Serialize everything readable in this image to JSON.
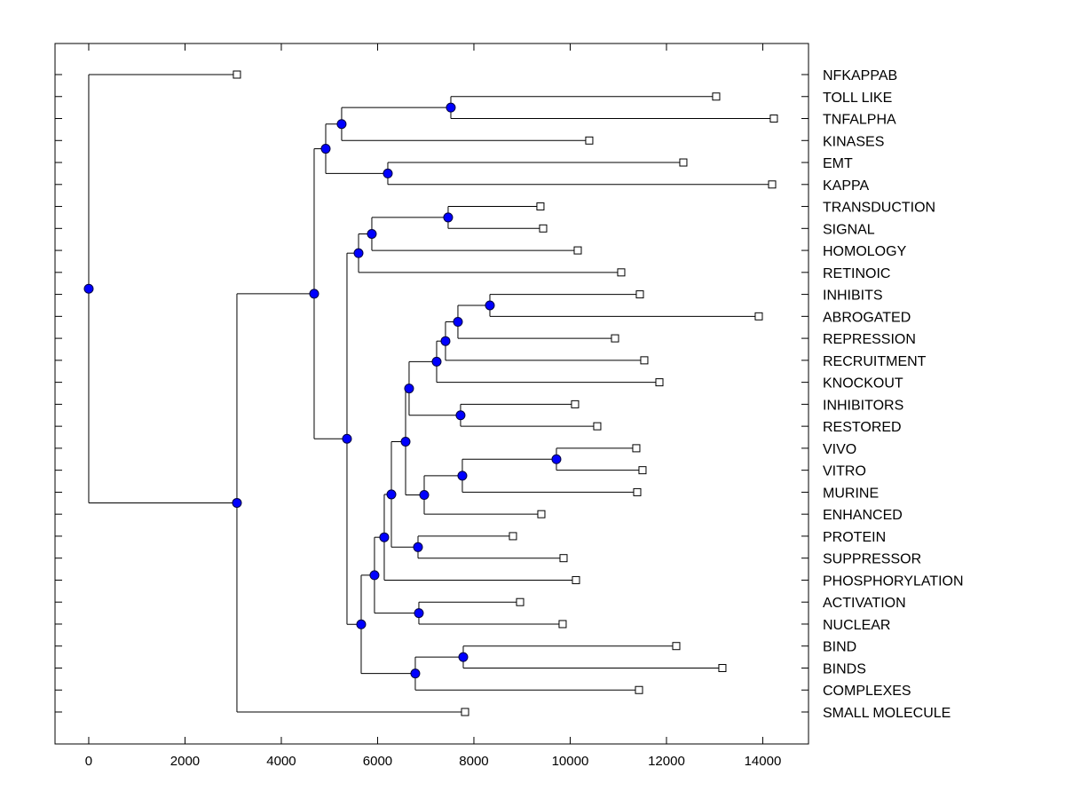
{
  "chart_data": {
    "type": "dendrogram",
    "title": "",
    "xlabel": "",
    "ylabel": "",
    "xlim": [
      -700,
      14950
    ],
    "x_ticks": [
      0,
      2000,
      4000,
      6000,
      8000,
      10000,
      12000,
      14000
    ],
    "x_tick_labels": [
      "0",
      "2000",
      "4000",
      "6000",
      "8000",
      "10000",
      "12000",
      "14000"
    ],
    "grid": false,
    "leaf_marker": "open-square",
    "node_marker": "filled-circle",
    "node_color": "#0000FF",
    "line_color": "#000000",
    "leaves": [
      {
        "label": "NFKAPPAB",
        "x": 3078
      },
      {
        "label": "TOLL LIKE",
        "x": 13032
      },
      {
        "label": "TNFALPHA",
        "x": 14230
      },
      {
        "label": "KINASES",
        "x": 10396
      },
      {
        "label": "EMT",
        "x": 12350
      },
      {
        "label": "KAPPA",
        "x": 14194
      },
      {
        "label": "TRANSDUCTION",
        "x": 9382
      },
      {
        "label": "SIGNAL",
        "x": 9438
      },
      {
        "label": "HOMOLOGY",
        "x": 10157
      },
      {
        "label": "RETINOIC",
        "x": 11060
      },
      {
        "label": "INHIBITS",
        "x": 11447
      },
      {
        "label": "ABROGATED",
        "x": 13917
      },
      {
        "label": "REPRESSION",
        "x": 10931
      },
      {
        "label": "RECRUITMENT",
        "x": 11539
      },
      {
        "label": "KNOCKOUT",
        "x": 11853
      },
      {
        "label": "INHIBITORS",
        "x": 10101
      },
      {
        "label": "RESTORED",
        "x": 10562
      },
      {
        "label": "VIVO",
        "x": 11373
      },
      {
        "label": "VITRO",
        "x": 11502
      },
      {
        "label": "MURINE",
        "x": 11392
      },
      {
        "label": "ENHANCED",
        "x": 9401
      },
      {
        "label": "PROTEIN",
        "x": 8811
      },
      {
        "label": "SUPPRESSOR",
        "x": 9862
      },
      {
        "label": "PHOSPHORYLATION",
        "x": 10120
      },
      {
        "label": "ACTIVATION",
        "x": 8959
      },
      {
        "label": "NUCLEAR",
        "x": 9843
      },
      {
        "label": "BIND",
        "x": 12203
      },
      {
        "label": "BINDS",
        "x": 13161
      },
      {
        "label": "COMPLEXES",
        "x": 11429
      },
      {
        "label": "SMALL MOLECULE",
        "x": 7816
      }
    ],
    "nodes": [
      {
        "id": "n_toll_tnf",
        "x": 7521,
        "children": [
          "L1",
          "L2"
        ]
      },
      {
        "id": "n_kinases",
        "x": 5253,
        "children": [
          "n_toll_tnf",
          "L3"
        ]
      },
      {
        "id": "n_emt_kappa",
        "x": 6212,
        "children": [
          "L4",
          "L5"
        ]
      },
      {
        "id": "n_top",
        "x": 4922,
        "children": [
          "n_kinases",
          "n_emt_kappa"
        ]
      },
      {
        "id": "n_trans_sig",
        "x": 7465,
        "children": [
          "L6",
          "L7"
        ]
      },
      {
        "id": "n_homology",
        "x": 5880,
        "children": [
          "n_trans_sig",
          "L8"
        ]
      },
      {
        "id": "n_retinoic",
        "x": 5604,
        "children": [
          "n_homology",
          "L9"
        ]
      },
      {
        "id": "n_inh_abr",
        "x": 8332,
        "children": [
          "L10",
          "L11"
        ]
      },
      {
        "id": "n_repression",
        "x": 7668,
        "children": [
          "n_inh_abr",
          "L12"
        ]
      },
      {
        "id": "n_recruitment",
        "x": 7410,
        "children": [
          "n_repression",
          "L13"
        ]
      },
      {
        "id": "n_knockout",
        "x": 7226,
        "children": [
          "n_recruitment",
          "L14"
        ]
      },
      {
        "id": "n_inhibitors_restored",
        "x": 7723,
        "children": [
          "L15",
          "L16"
        ]
      },
      {
        "id": "n_inhibits_group",
        "x": 6654,
        "children": [
          "n_knockout",
          "n_inhibitors_restored"
        ]
      },
      {
        "id": "n_vivo_vitro",
        "x": 9714,
        "children": [
          "L17",
          "L18"
        ]
      },
      {
        "id": "n_murine",
        "x": 7760,
        "children": [
          "n_vivo_vitro",
          "L19"
        ]
      },
      {
        "id": "n_enhanced",
        "x": 6968,
        "children": [
          "n_murine",
          "L20"
        ]
      },
      {
        "id": "n_A",
        "x": 6581,
        "children": [
          "n_inhibits_group",
          "n_enhanced"
        ]
      },
      {
        "id": "n_protein_supp",
        "x": 6839,
        "children": [
          "L21",
          "L22"
        ]
      },
      {
        "id": "n_B",
        "x": 6286,
        "children": [
          "n_A",
          "n_protein_supp"
        ]
      },
      {
        "id": "n_C",
        "x": 6138,
        "children": [
          "n_B",
          "L23"
        ]
      },
      {
        "id": "n_act_nuc",
        "x": 6857,
        "children": [
          "L24",
          "L25"
        ]
      },
      {
        "id": "n_D",
        "x": 5935,
        "children": [
          "n_C",
          "n_act_nuc"
        ]
      },
      {
        "id": "n_bind_binds",
        "x": 7779,
        "children": [
          "L26",
          "L27"
        ]
      },
      {
        "id": "n_complexes",
        "x": 6783,
        "children": [
          "n_bind_binds",
          "L28"
        ]
      },
      {
        "id": "n_E",
        "x": 5659,
        "children": [
          "n_D",
          "n_complexes"
        ]
      },
      {
        "id": "n_F",
        "x": 5364,
        "children": [
          "n_retinoic",
          "n_E"
        ]
      },
      {
        "id": "n_G",
        "x": 4682,
        "children": [
          "n_top",
          "n_F"
        ]
      },
      {
        "id": "n_H",
        "x": 3078,
        "children": [
          "n_G",
          "L29"
        ]
      },
      {
        "id": "root",
        "x": 0,
        "children": [
          "L0",
          "n_H"
        ]
      }
    ]
  }
}
